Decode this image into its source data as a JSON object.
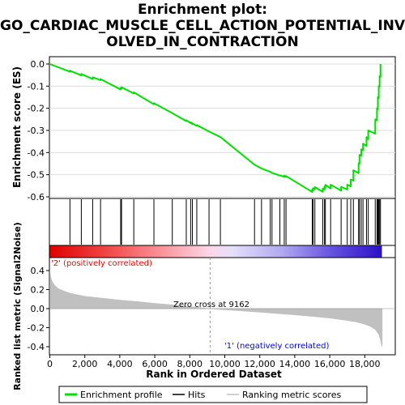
{
  "title_lines": [
    "Enrichment plot:",
    "GO_CARDIAC_MUSCLE_CELL_ACTION_POTENTIAL_INV",
    "OLVED_IN_CONTRACTION"
  ],
  "ylabel_top": "Enrichment score (ES)",
  "ylabel_bottom": "Ranked list metric (Signal2Noise)",
  "xlabel": "Rank in Ordered Dataset",
  "label_pos": "'2' (positively correlated)",
  "label_neg": "'1' (negatively correlated)",
  "zero_cross_label": "Zero cross at 9162",
  "legend": [
    "Enrichment profile",
    "Hits",
    "Ranking metric scores"
  ],
  "colors": {
    "profile": "#00e000",
    "hits": "#000000",
    "metric": "#c0c0c0",
    "pos": "#ff0000",
    "neg": "#0000ff"
  },
  "chart_data": {
    "type": "line",
    "x_range": [
      0,
      19000
    ],
    "x_ticks": [
      0,
      2000,
      4000,
      6000,
      8000,
      10000,
      12000,
      14000,
      16000,
      18000
    ],
    "x_tick_labels": [
      "0",
      "2,000",
      "4,000",
      "6,000",
      "8,000",
      "10,000",
      "12,000",
      "14,000",
      "16,000",
      "18,000"
    ],
    "es_ylim": [
      -0.6,
      0.0
    ],
    "es_y_ticks": [
      0.0,
      -0.1,
      -0.2,
      -0.3,
      -0.4,
      -0.5,
      -0.6
    ],
    "es_y_tick_labels": [
      "0.0",
      "-0.1",
      "-0.2",
      "-0.3",
      "-0.4",
      "-0.5",
      "-0.6"
    ],
    "metric_ylim": [
      -0.4,
      0.4
    ],
    "metric_y_ticks": [
      0.4,
      0.2,
      0.0,
      -0.2,
      -0.4
    ],
    "metric_y_tick_labels": [
      "0.4",
      "0.2",
      "0.0",
      "-0.2",
      "-0.4"
    ],
    "zero_cross": 9162,
    "hits": [
      1150,
      1800,
      2450,
      2900,
      4050,
      4100,
      4800,
      5950,
      7000,
      7800,
      8050,
      8150,
      8400,
      9100,
      9750,
      11700,
      12100,
      12600,
      12700,
      13150,
      13400,
      13500,
      15000,
      15050,
      15150,
      15600,
      15700,
      15750,
      16050,
      16650,
      17000,
      17200,
      17350,
      17650,
      17700,
      17800,
      17900,
      18100,
      18200,
      18600,
      18700,
      18750,
      18800,
      18850,
      18900
    ],
    "es_profile": [
      [
        0,
        0.0
      ],
      [
        1150,
        -0.035
      ],
      [
        1150,
        -0.03
      ],
      [
        1800,
        -0.052
      ],
      [
        1800,
        -0.045
      ],
      [
        2450,
        -0.068
      ],
      [
        2450,
        -0.06
      ],
      [
        2900,
        -0.073
      ],
      [
        2900,
        -0.068
      ],
      [
        4050,
        -0.115
      ],
      [
        4050,
        -0.108
      ],
      [
        4100,
        -0.11
      ],
      [
        4100,
        -0.105
      ],
      [
        4800,
        -0.133
      ],
      [
        4800,
        -0.128
      ],
      [
        5950,
        -0.182
      ],
      [
        5950,
        -0.177
      ],
      [
        7000,
        -0.222
      ],
      [
        7800,
        -0.258
      ],
      [
        7800,
        -0.254
      ],
      [
        8050,
        -0.267
      ],
      [
        8050,
        -0.263
      ],
      [
        8150,
        -0.272
      ],
      [
        8150,
        -0.268
      ],
      [
        8400,
        -0.28
      ],
      [
        8400,
        -0.276
      ],
      [
        9100,
        -0.305
      ],
      [
        9750,
        -0.33
      ],
      [
        11700,
        -0.455
      ],
      [
        12100,
        -0.472
      ],
      [
        12600,
        -0.487
      ],
      [
        12700,
        -0.492
      ],
      [
        13150,
        -0.504
      ],
      [
        13400,
        -0.509
      ],
      [
        13400,
        -0.505
      ],
      [
        13500,
        -0.51
      ],
      [
        13500,
        -0.506
      ],
      [
        15000,
        -0.578
      ],
      [
        15000,
        -0.566
      ],
      [
        15050,
        -0.571
      ],
      [
        15050,
        -0.561
      ],
      [
        15150,
        -0.566
      ],
      [
        15150,
        -0.556
      ],
      [
        15600,
        -0.577
      ],
      [
        15600,
        -0.562
      ],
      [
        15700,
        -0.567
      ],
      [
        15700,
        -0.554
      ],
      [
        15750,
        -0.559
      ],
      [
        15750,
        -0.546
      ],
      [
        16050,
        -0.562
      ],
      [
        16050,
        -0.545
      ],
      [
        16650,
        -0.572
      ],
      [
        16650,
        -0.555
      ],
      [
        17000,
        -0.567
      ],
      [
        17000,
        -0.545
      ],
      [
        17200,
        -0.553
      ],
      [
        17200,
        -0.522
      ],
      [
        17350,
        -0.527
      ],
      [
        17350,
        -0.48
      ],
      [
        17650,
        -0.493
      ],
      [
        17650,
        -0.448
      ],
      [
        17700,
        -0.45
      ],
      [
        17700,
        -0.41
      ],
      [
        17800,
        -0.415
      ],
      [
        17800,
        -0.385
      ],
      [
        17900,
        -0.39
      ],
      [
        17900,
        -0.36
      ],
      [
        18100,
        -0.37
      ],
      [
        18100,
        -0.33
      ],
      [
        18200,
        -0.34
      ],
      [
        18200,
        -0.3
      ],
      [
        18600,
        -0.315
      ],
      [
        18600,
        -0.25
      ],
      [
        18700,
        -0.255
      ],
      [
        18700,
        -0.2
      ],
      [
        18750,
        -0.205
      ],
      [
        18750,
        -0.15
      ],
      [
        18800,
        -0.155
      ],
      [
        18800,
        -0.1
      ],
      [
        18850,
        -0.102
      ],
      [
        18850,
        -0.055
      ],
      [
        18900,
        -0.058
      ],
      [
        18900,
        0.0
      ]
    ],
    "metric_profile": [
      [
        0,
        0.4
      ],
      [
        50,
        0.33
      ],
      [
        150,
        0.28
      ],
      [
        300,
        0.24
      ],
      [
        500,
        0.21
      ],
      [
        800,
        0.185
      ],
      [
        1200,
        0.16
      ],
      [
        2000,
        0.13
      ],
      [
        3000,
        0.11
      ],
      [
        4000,
        0.09
      ],
      [
        5000,
        0.075
      ],
      [
        6000,
        0.055
      ],
      [
        7000,
        0.04
      ],
      [
        8000,
        0.022
      ],
      [
        9162,
        0.0
      ],
      [
        10000,
        -0.012
      ],
      [
        11000,
        -0.025
      ],
      [
        12000,
        -0.038
      ],
      [
        13000,
        -0.052
      ],
      [
        14000,
        -0.066
      ],
      [
        15000,
        -0.082
      ],
      [
        16000,
        -0.1
      ],
      [
        17000,
        -0.125
      ],
      [
        17500,
        -0.14
      ],
      [
        18000,
        -0.165
      ],
      [
        18300,
        -0.185
      ],
      [
        18600,
        -0.22
      ],
      [
        18800,
        -0.27
      ],
      [
        18900,
        -0.33
      ],
      [
        18950,
        -0.38
      ],
      [
        19000,
        -0.4
      ]
    ]
  }
}
